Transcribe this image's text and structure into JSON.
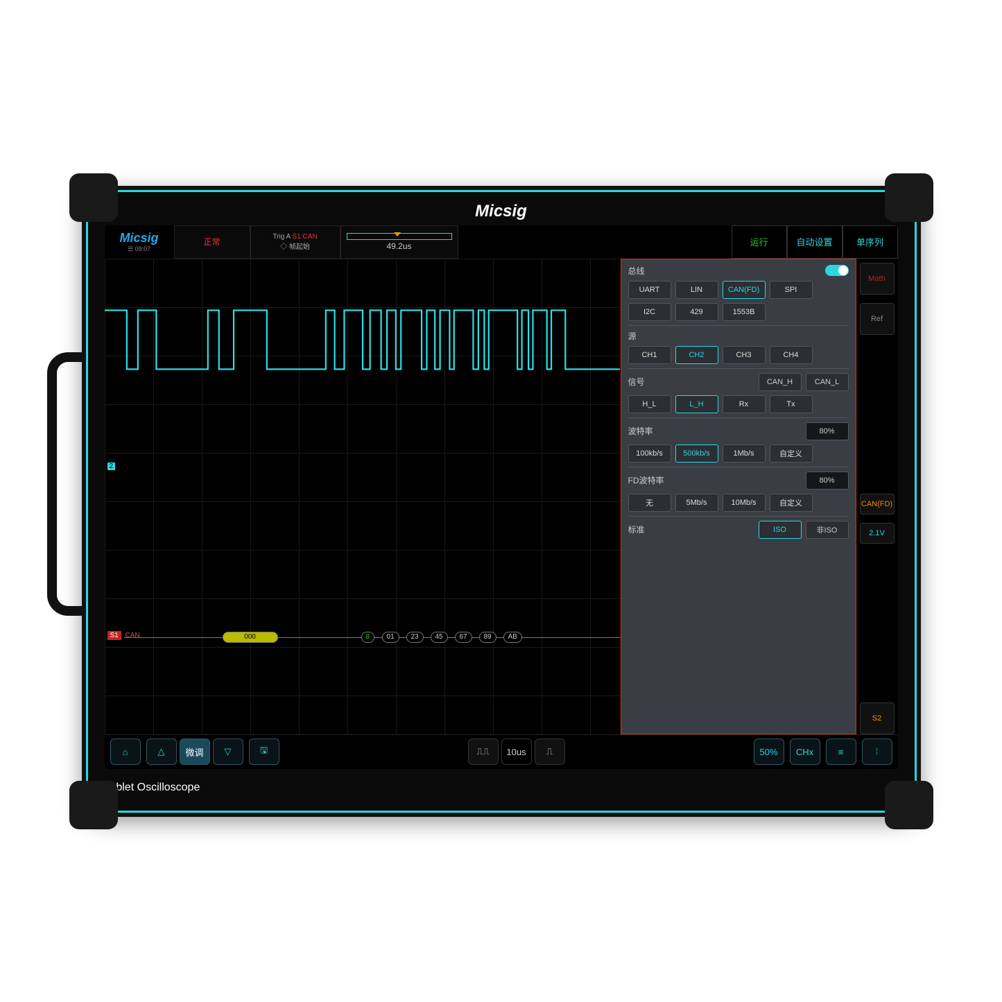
{
  "brand": "Micsig",
  "footer": "Tablet Oscilloscope",
  "topbar": {
    "logo": "Micsig",
    "time": "☰ 09:07",
    "status": "正常",
    "trig_label": "Trig A",
    "trig_src": "S1:CAN",
    "trig_mode": "帧起始",
    "timebase": "49.2us",
    "run": "运行",
    "auto_line1": "自动",
    "auto_line2": "设置",
    "single": "单序列"
  },
  "side": {
    "math": "Math",
    "ref": "Ref",
    "can": "CAN(FD)",
    "voltage": "2.1V",
    "s2": "S2"
  },
  "panel": {
    "bus_label": "总线",
    "bus_opts": [
      "UART",
      "LIN",
      "CAN(FD)",
      "SPI",
      "I2C",
      "429",
      "1553B"
    ],
    "bus_sel": 2,
    "src_label": "源",
    "src_opts": [
      "CH1",
      "CH2",
      "CH3",
      "CH4"
    ],
    "src_sel": 1,
    "sig_label": "信号",
    "sig_top": [
      "CAN_H",
      "CAN_L"
    ],
    "sig_opts": [
      "H_L",
      "L_H",
      "Rx",
      "Tx"
    ],
    "sig_sel": 1,
    "baud_label": "波特率",
    "baud_pct": "80%",
    "baud_opts": [
      "100kb/s",
      "500kb/s",
      "1Mb/s",
      "自定义"
    ],
    "baud_sel": 1,
    "fd_label": "FD波特率",
    "fd_pct": "80%",
    "fd_opts": [
      "无",
      "5Mb/s",
      "10Mb/s",
      "自定义"
    ],
    "std_label": "标准",
    "std_opts": [
      "ISO",
      "非ISO"
    ],
    "std_sel": 0
  },
  "decode": {
    "tag": "S1",
    "proto": "CAN",
    "bytes": [
      "000",
      "8",
      "01",
      "23",
      "45",
      "67",
      "89",
      "AB"
    ]
  },
  "bottombar": {
    "fine": "微调",
    "timebase": "10us",
    "fifty": "50%",
    "chx": "CHx"
  },
  "colors": {
    "accent": "#29d8e0",
    "run": "#22cc22",
    "warn": "#ee3333",
    "panel_bg": "#3a3e44"
  }
}
